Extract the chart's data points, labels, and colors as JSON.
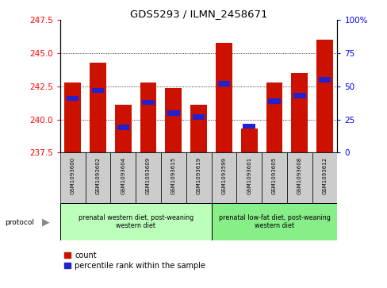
{
  "title": "GDS5293 / ILMN_2458671",
  "samples": [
    "GSM1093600",
    "GSM1093602",
    "GSM1093604",
    "GSM1093609",
    "GSM1093615",
    "GSM1093619",
    "GSM1093599",
    "GSM1093601",
    "GSM1093605",
    "GSM1093608",
    "GSM1093612"
  ],
  "counts": [
    242.8,
    244.3,
    241.1,
    242.8,
    242.4,
    241.1,
    245.8,
    239.3,
    242.8,
    243.5,
    246.0
  ],
  "percentiles": [
    41,
    47,
    19,
    38,
    30,
    27,
    52,
    20,
    39,
    43,
    55
  ],
  "ymin": 237.5,
  "ymax": 247.5,
  "yticks": [
    237.5,
    240.0,
    242.5,
    245.0,
    247.5
  ],
  "right_yticks": [
    0,
    25,
    50,
    75,
    100
  ],
  "bar_color": "#cc1100",
  "percentile_color": "#2222cc",
  "group1_label": "prenatal western diet, post-weaning\nwestern diet",
  "group2_label": "prenatal low-fat diet, post-weaning\nwestern diet",
  "group1_color": "#bbffbb",
  "group2_color": "#88ee88",
  "group1_count": 6,
  "group2_count": 5,
  "legend_count_label": "count",
  "legend_pct_label": "percentile rank within the sample",
  "protocol_label": "protocol"
}
